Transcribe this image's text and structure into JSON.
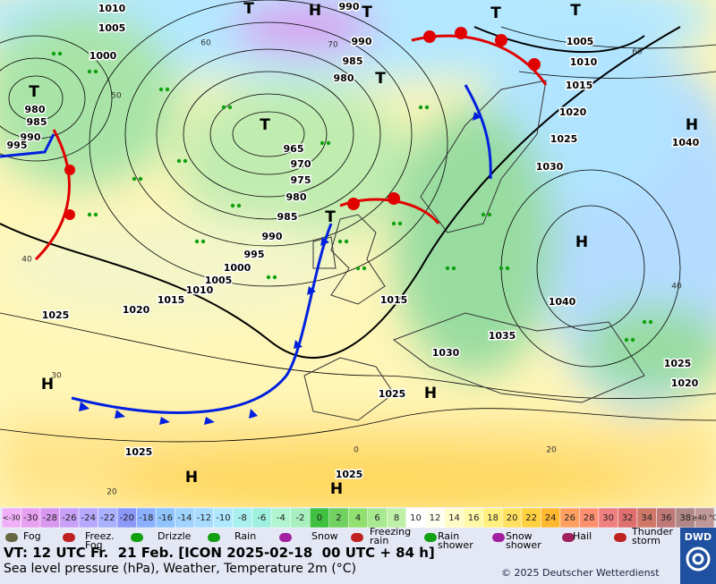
{
  "map": {
    "isobar_labels": [
      "1010",
      "1005",
      "1000",
      "990",
      "990",
      "985",
      "980",
      "1005",
      "1010",
      "1015",
      "1020",
      "1025",
      "1030",
      "1040",
      "980",
      "985",
      "990",
      "995",
      "965",
      "970",
      "975",
      "980",
      "985",
      "990",
      "995",
      "1000",
      "1005",
      "1010",
      "1015",
      "1020",
      "1025",
      "1015",
      "1035",
      "1030",
      "1040",
      "1025",
      "1025",
      "1020",
      "1025",
      "1025"
    ],
    "centers": [
      "T",
      "H",
      "T",
      "T",
      "T",
      "T",
      "T",
      "T",
      "T",
      "H",
      "H",
      "H",
      "H",
      "H",
      "H"
    ],
    "isotherm_labels": [
      "60",
      "50",
      "40",
      "30",
      "20",
      "70",
      "20",
      "40",
      "60",
      "0"
    ]
  },
  "color_scale": {
    "values": [
      "<-30",
      -30,
      -28,
      -26,
      -24,
      -22,
      -20,
      -18,
      -16,
      -14,
      -12,
      -10,
      -8,
      -6,
      -4,
      -2,
      0,
      2,
      4,
      6,
      8,
      10,
      12,
      14,
      16,
      18,
      20,
      22,
      24,
      26,
      28,
      30,
      32,
      34,
      36,
      38,
      "≥40 °C"
    ],
    "colors": [
      "#f0b0f8",
      "#e8a0f0",
      "#d898f0",
      "#c8a0f8",
      "#b8a8ff",
      "#a8b0ff",
      "#8c98f8",
      "#8ab0ff",
      "#90c4ff",
      "#a0d4ff",
      "#a8dcff",
      "#b0e8ff",
      "#a8f0f0",
      "#a0f0e0",
      "#b0f4d0",
      "#a8f0c0",
      "#40c040",
      "#70d060",
      "#90e070",
      "#a8e890",
      "#c0f0a8",
      "#ffffff",
      "#fffff0",
      "#fffcc8",
      "#fff8a8",
      "#fff080",
      "#ffe060",
      "#ffd040",
      "#ffb830",
      "#ffa060",
      "#ff9070",
      "#f08080",
      "#e07070",
      "#d07868",
      "#c07878",
      "#b08888",
      "#c09898"
    ]
  },
  "legend": {
    "items": [
      "Fog",
      "Freez. Fog",
      "Drizzle",
      "Rain",
      "Snow",
      "Freezing rain",
      "Rain shower",
      "Snow shower",
      "Hail",
      "Thunder storm"
    ]
  },
  "footer": {
    "valid": "VT: 12 UTC Fr.  21 Feb. [ICON 2025-02-18  00 UTC + 84 h]",
    "subtitle": "Sea level pressure (hPa), Weather, Temperature 2m (°C)",
    "copyright": "© 2025 Deutscher Wetterdienst",
    "logo": "DWD"
  }
}
